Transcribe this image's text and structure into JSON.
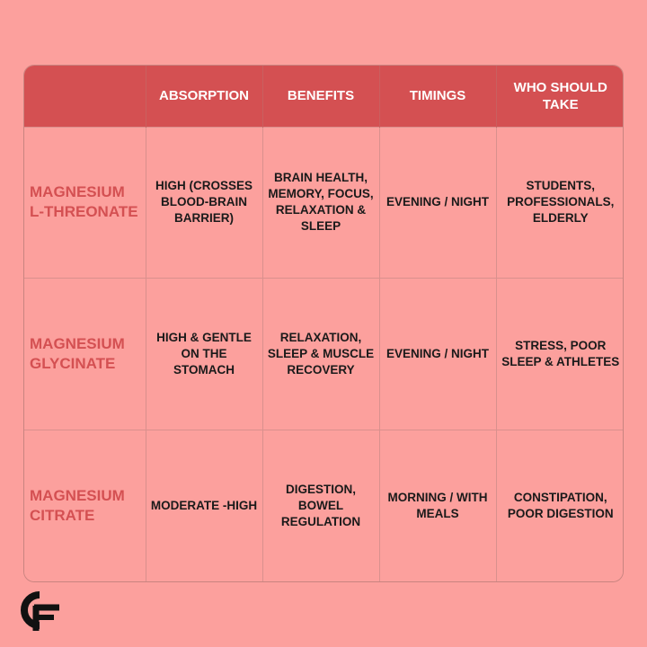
{
  "table": {
    "headers": [
      "",
      "ABSORPTION",
      "BENEFITS",
      "TIMINGS",
      "WHO SHOULD TAKE"
    ],
    "rows": [
      {
        "label": "MAGNESIUM L-THREONATE",
        "absorption": "HIGH (CROSSES BLOOD-BRAIN BARRIER)",
        "benefits": "BRAIN HEALTH, MEMORY, FOCUS, RELAXATION & SLEEP",
        "timings": "EVENING / NIGHT",
        "who": "STUDENTS, PROFESSIONALS, ELDERLY"
      },
      {
        "label": "MAGNESIUM GLYCINATE",
        "absorption": "HIGH & GENTLE ON THE STOMACH",
        "benefits": "RELAXATION, SLEEP & MUSCLE RECOVERY",
        "timings": "EVENING / NIGHT",
        "who": "STRESS, POOR SLEEP & ATHLETES"
      },
      {
        "label": "MAGNESIUM CITRATE",
        "absorption": "MODERATE -HIGH",
        "benefits": "DIGESTION, BOWEL REGULATION",
        "timings": "MORNING / WITH MEALS",
        "who": "CONSTIPATION, POOR DIGESTION"
      }
    ]
  },
  "logo": {
    "icon": "cf-logo-icon",
    "text": "CF"
  },
  "colors": {
    "background": "#fca09d",
    "header": "#d45052",
    "accent_text": "#d45052",
    "body_text": "#1a1a1a"
  }
}
